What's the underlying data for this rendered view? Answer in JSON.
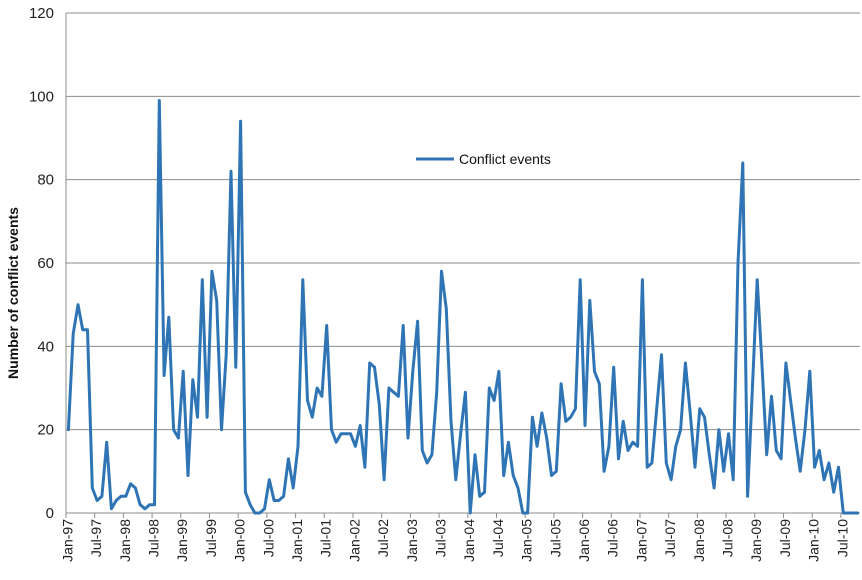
{
  "chart_data": {
    "type": "line",
    "title": "",
    "xlabel": "",
    "ylabel": "Number of conflict events",
    "ylim": [
      0,
      120
    ],
    "yticks": [
      "0",
      "20",
      "40",
      "60",
      "80",
      "100",
      "120"
    ],
    "xtick_labels": [
      "Jan-97",
      "Jul-97",
      "Jan-98",
      "Jul-98",
      "Jan-99",
      "Jul-99",
      "Jan-00",
      "Jul-00",
      "Jan-01",
      "Jul-01",
      "Jan-02",
      "Jul-02",
      "Jan-03",
      "Jul-03",
      "Jan-04",
      "Jul-04",
      "Jan-05",
      "Jul-05",
      "Jan-06",
      "Jul-06",
      "Jan-07",
      "Jul-07",
      "Jan-08",
      "Jul-08",
      "Jan-09",
      "Jul-09",
      "Jan-10",
      "Jul-10"
    ],
    "grid": "horizontal",
    "legend_position": "upper-center",
    "colors": {
      "series": "#2f75b5",
      "grid": "#8c8c8c",
      "axis": "#8c8c8c"
    },
    "series": [
      {
        "name": "Conflict events",
        "start_month": "Jan-97",
        "values": [
          20,
          43,
          50,
          44,
          44,
          6,
          3,
          4,
          17,
          1,
          3,
          4,
          4,
          7,
          6,
          2,
          1,
          2,
          2,
          99,
          33,
          47,
          20,
          18,
          34,
          9,
          32,
          23,
          56,
          23,
          58,
          51,
          20,
          38,
          82,
          35,
          94,
          5,
          2,
          0,
          0,
          1,
          8,
          3,
          3,
          4,
          13,
          6,
          16,
          56,
          27,
          23,
          30,
          28,
          45,
          20,
          17,
          19,
          19,
          19,
          16,
          21,
          11,
          36,
          35,
          26,
          8,
          30,
          29,
          28,
          45,
          18,
          34,
          46,
          15,
          12,
          14,
          29,
          58,
          49,
          22,
          8,
          19,
          29,
          0,
          14,
          4,
          5,
          30,
          27,
          34,
          9,
          17,
          9,
          6,
          0,
          0,
          23,
          16,
          24,
          18,
          9,
          10,
          31,
          22,
          23,
          25,
          56,
          21,
          51,
          34,
          31,
          10,
          16,
          35,
          13,
          22,
          15,
          17,
          16,
          56,
          11,
          12,
          25,
          38,
          12,
          8,
          16,
          20,
          36,
          24,
          11,
          25,
          23,
          14,
          6,
          20,
          10,
          19,
          8,
          60,
          84,
          4,
          30,
          56,
          36,
          14,
          28,
          15,
          13,
          36,
          27,
          18,
          10,
          20,
          34,
          11,
          15,
          8,
          12,
          5,
          11,
          0,
          0,
          0,
          0
        ]
      }
    ]
  }
}
